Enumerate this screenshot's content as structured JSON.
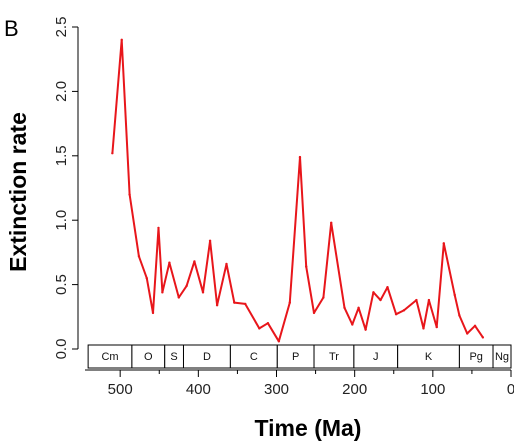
{
  "panel_label": "B",
  "chart_data": {
    "type": "line",
    "title": "",
    "xlabel": "Time (Ma)",
    "ylabel": "Extinction rate",
    "xlim": [
      545,
      0
    ],
    "ylim": [
      0,
      2.5
    ],
    "x_ticks": [
      500,
      400,
      300,
      200,
      100,
      0
    ],
    "y_ticks": [
      "0.0",
      "0.5",
      "1.0",
      "1.5",
      "2.0",
      "2.5"
    ],
    "grid": false,
    "series": [
      {
        "color": "#e8161b",
        "x": [
          510,
          498,
          488,
          476,
          466,
          458,
          451,
          446,
          437,
          425,
          415,
          405,
          394,
          385,
          376,
          364,
          354,
          340,
          322,
          311,
          297,
          283,
          270,
          262,
          252,
          240,
          230,
          213,
          203,
          195,
          186,
          176,
          167,
          158,
          147,
          137,
          121,
          112,
          105,
          95,
          86,
          72,
          66,
          56,
          46,
          36
        ],
        "values": [
          1.52,
          2.4,
          1.2,
          0.72,
          0.55,
          0.28,
          0.94,
          0.44,
          0.67,
          0.4,
          0.49,
          0.68,
          0.44,
          0.84,
          0.34,
          0.66,
          0.36,
          0.35,
          0.16,
          0.2,
          0.06,
          0.36,
          1.49,
          0.64,
          0.28,
          0.4,
          0.98,
          0.32,
          0.19,
          0.32,
          0.15,
          0.44,
          0.38,
          0.48,
          0.27,
          0.3,
          0.38,
          0.16,
          0.38,
          0.17,
          0.82,
          0.42,
          0.26,
          0.12,
          0.18,
          0.09
        ]
      }
    ],
    "periods": [
      {
        "label": "Cm",
        "start": 541,
        "end": 485
      },
      {
        "label": "O",
        "start": 485,
        "end": 443
      },
      {
        "label": "S",
        "start": 443,
        "end": 419
      },
      {
        "label": "D",
        "start": 419,
        "end": 359
      },
      {
        "label": "C",
        "start": 359,
        "end": 299
      },
      {
        "label": "P",
        "start": 299,
        "end": 252
      },
      {
        "label": "Tr",
        "start": 252,
        "end": 201
      },
      {
        "label": "J",
        "start": 201,
        "end": 145
      },
      {
        "label": "K",
        "start": 145,
        "end": 66
      },
      {
        "label": "Pg",
        "start": 66,
        "end": 23
      },
      {
        "label": "Ng",
        "start": 23,
        "end": 0
      }
    ]
  }
}
